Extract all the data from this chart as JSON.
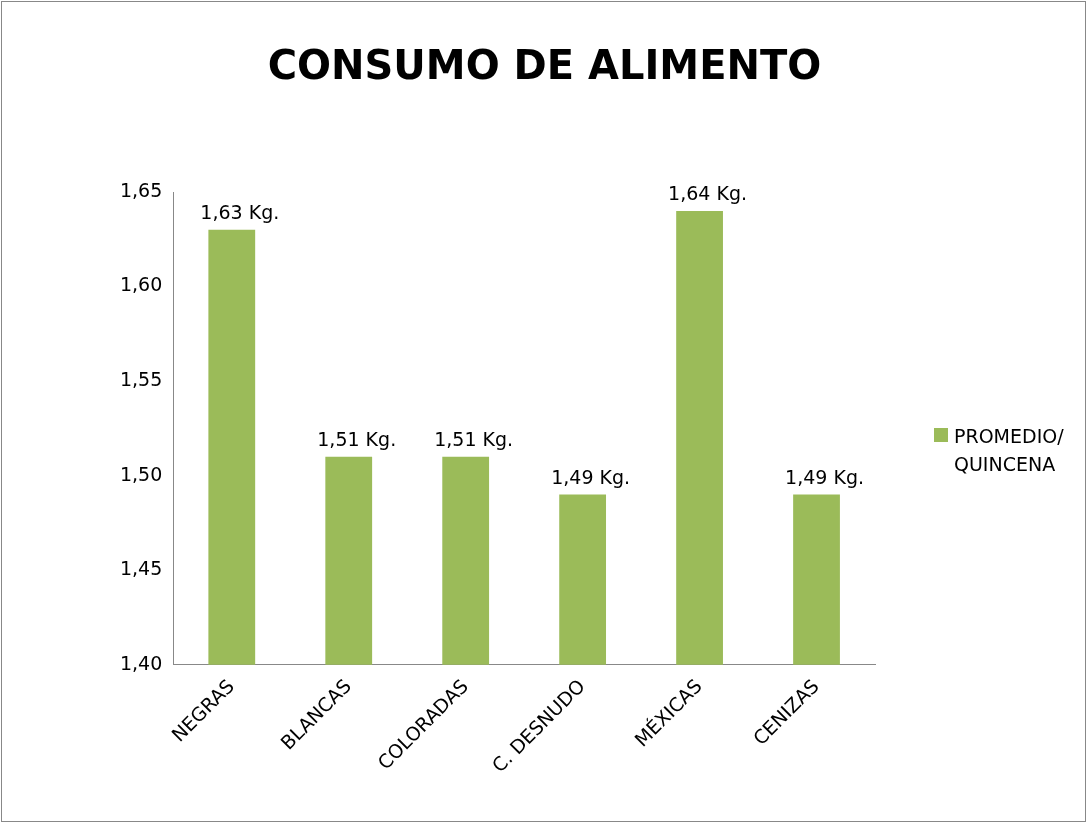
{
  "chart_data": {
    "type": "bar",
    "title": "CONSUMO DE ALIMENTO",
    "categories": [
      "NEGRAS",
      "BLANCAS",
      "COLORADAS",
      "C. DESNUDO",
      "MÉXICAS",
      "CENIZAS"
    ],
    "series": [
      {
        "name": "PROMEDIO/ QUINCENA",
        "color": "#9bbb59",
        "values": [
          1.63,
          1.51,
          1.51,
          1.49,
          1.64,
          1.49
        ],
        "value_labels": [
          "1,63 Kg.",
          "1,51 Kg.",
          "1,51 Kg.",
          "1,49 Kg.",
          "1,64 Kg.",
          "1,49 Kg."
        ]
      }
    ],
    "ylim": [
      1.4,
      1.65
    ],
    "yticks": [
      {
        "value": 1.4,
        "label": "1,40"
      },
      {
        "value": 1.45,
        "label": "1,45"
      },
      {
        "value": 1.5,
        "label": "1,50"
      },
      {
        "value": 1.55,
        "label": "1,55"
      },
      {
        "value": 1.6,
        "label": "1,60"
      },
      {
        "value": 1.65,
        "label": "1,65"
      }
    ],
    "grid": false,
    "legend": "right"
  }
}
